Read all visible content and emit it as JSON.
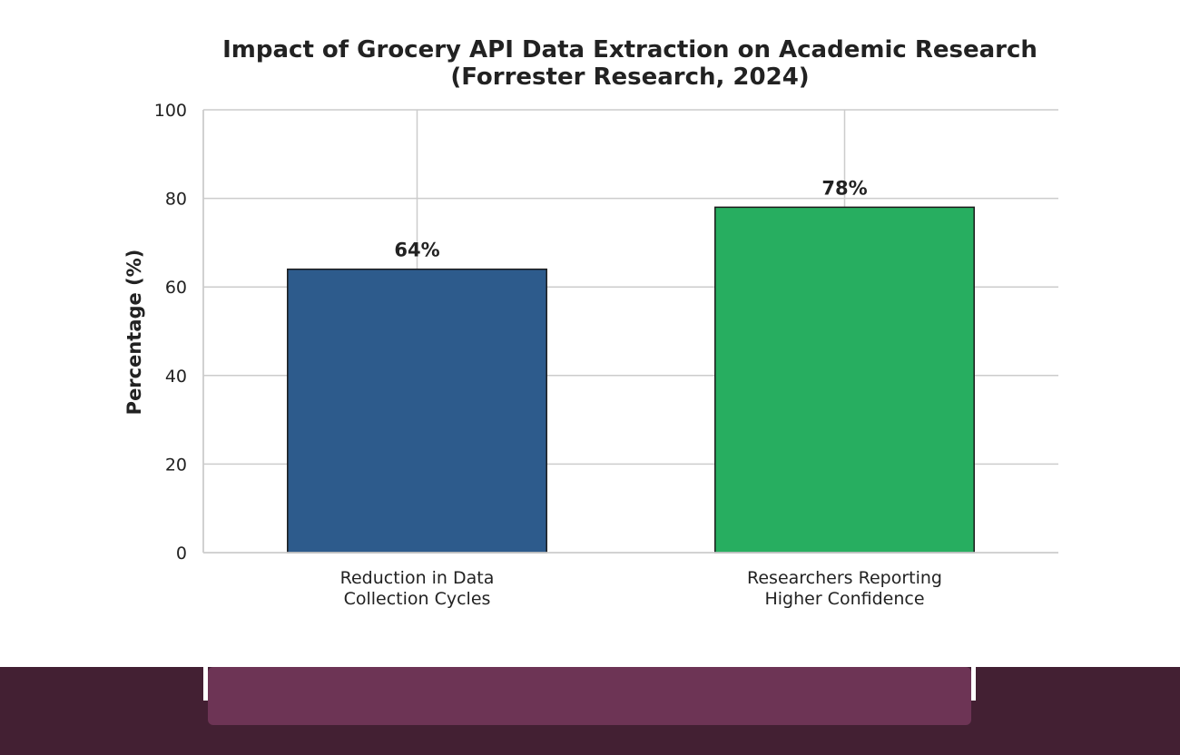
{
  "chart_data": {
    "type": "bar",
    "title": "Impact of Grocery API Data Extraction on Academic Research",
    "subtitle": "(Forrester Research, 2024)",
    "xlabel": "",
    "ylabel": "Percentage (%)",
    "ylim": [
      0,
      100
    ],
    "yticks": [
      0,
      20,
      40,
      60,
      80,
      100
    ],
    "grid": true,
    "categories": [
      [
        "Reduction in Data",
        "Collection Cycles"
      ],
      [
        "Researchers Reporting",
        "Higher Confidence"
      ]
    ],
    "values": [
      64,
      78
    ],
    "data_labels": [
      "64%",
      "78%"
    ],
    "colors": [
      "#2d5b8c",
      "#27ae60"
    ]
  }
}
